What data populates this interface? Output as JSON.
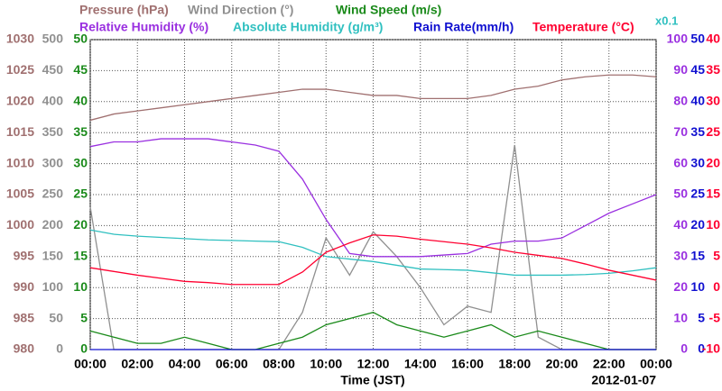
{
  "chart_data": {
    "type": "line",
    "xlabel": "Time (JST)",
    "date_label": "2012-01-07",
    "scale_note": "x0.1",
    "xlim": [
      0,
      24
    ],
    "xticks": [
      {
        "value": 0,
        "label": "00:00"
      },
      {
        "value": 2,
        "label": "02:00"
      },
      {
        "value": 4,
        "label": "04:00"
      },
      {
        "value": 6,
        "label": "06:00"
      },
      {
        "value": 8,
        "label": "08:00"
      },
      {
        "value": 10,
        "label": "10:00"
      },
      {
        "value": 12,
        "label": "12:00"
      },
      {
        "value": 14,
        "label": "14:00"
      },
      {
        "value": 16,
        "label": "16:00"
      },
      {
        "value": 18,
        "label": "18:00"
      },
      {
        "value": 20,
        "label": "20:00"
      },
      {
        "value": 22,
        "label": "22:00"
      },
      {
        "value": 24,
        "label": "00:00"
      }
    ],
    "grid": true,
    "axes": [
      {
        "color": "#a07070",
        "ylim": [
          980,
          1030
        ],
        "yticks": [
          980,
          985,
          990,
          995,
          1000,
          1005,
          1010,
          1015,
          1020,
          1025,
          1030
        ]
      },
      {
        "color": "#909090",
        "ylim": [
          0,
          500
        ],
        "yticks": [
          0,
          50,
          100,
          150,
          200,
          250,
          300,
          350,
          400,
          450,
          500
        ]
      },
      {
        "color": "#1a8a1a",
        "ylim": [
          0,
          50
        ],
        "yticks": [
          0,
          5,
          10,
          15,
          20,
          25,
          30,
          35,
          40,
          45,
          50
        ]
      },
      {
        "color": "#9a30e0",
        "ylim": [
          0,
          100
        ],
        "yticks": [
          0,
          10,
          20,
          30,
          40,
          50,
          60,
          70,
          80,
          90,
          100
        ]
      },
      {
        "color": "#1010d0",
        "ylim": [
          0,
          50
        ],
        "yticks": [
          0,
          5,
          10,
          15,
          20,
          25,
          30,
          35,
          40,
          45,
          50
        ]
      },
      {
        "color": "#ff0030",
        "ylim": [
          -10,
          40
        ],
        "yticks": [
          -10,
          -5,
          0,
          5,
          10,
          15,
          20,
          25,
          30,
          35,
          40
        ]
      }
    ],
    "x": [
      0,
      1,
      2,
      3,
      4,
      5,
      6,
      7,
      8,
      9,
      10,
      11,
      12,
      13,
      14,
      15,
      16,
      17,
      18,
      19,
      20,
      21,
      22,
      23,
      24
    ],
    "series": [
      {
        "name": "Pressure (hPa)",
        "color": "#a07070",
        "axis": 0,
        "values": [
          1017,
          1018,
          1018.5,
          1019,
          1019.5,
          1020,
          1020.5,
          1021,
          1021.5,
          1022,
          1022,
          1021.5,
          1021,
          1021,
          1020.5,
          1020.5,
          1020.5,
          1021,
          1022,
          1022.5,
          1023.5,
          1024,
          1024.3,
          1024.3,
          1024
        ]
      },
      {
        "name": "Wind Direction (°)",
        "color": "#909090",
        "axis": 1,
        "values": [
          230,
          0,
          0,
          0,
          0,
          0,
          0,
          0,
          0,
          60,
          180,
          120,
          190,
          150,
          100,
          40,
          70,
          60,
          330,
          20,
          0,
          0,
          0,
          0,
          0
        ]
      },
      {
        "name": "Wind Speed (m/s)",
        "color": "#1a8a1a",
        "axis": 2,
        "values": [
          3,
          2,
          1,
          1,
          2,
          1,
          0,
          0,
          1,
          2,
          4,
          5,
          6,
          4,
          3,
          2,
          3,
          4,
          2,
          3,
          2,
          1,
          0,
          0,
          0
        ]
      },
      {
        "name": "Relative Humidity (%)",
        "color": "#9a30e0",
        "axis": 3,
        "values": [
          65.5,
          67,
          67,
          68,
          68,
          68,
          67,
          66,
          64,
          55,
          42,
          31,
          30,
          30,
          30,
          30.5,
          31,
          34,
          35,
          35,
          36,
          40,
          44,
          47,
          50
        ]
      },
      {
        "name": "Absolute Humidity (g/m³)",
        "color": "#30c0c0",
        "axis": 4,
        "values": [
          19.3,
          18.6,
          18.3,
          18.1,
          17.9,
          17.7,
          17.6,
          17.5,
          17.4,
          16.5,
          15,
          14.6,
          14.2,
          13.6,
          13,
          12.9,
          12.8,
          12.4,
          12,
          12,
          12,
          12.1,
          12.3,
          12.7,
          13.2
        ]
      },
      {
        "name": "Rain Rate(mm/h)",
        "color": "#1010d0",
        "axis": 4,
        "values": [
          0,
          0,
          0,
          0,
          0,
          0,
          0,
          0,
          0,
          0,
          0,
          0,
          0,
          0,
          0,
          0,
          0,
          0,
          0,
          0,
          0,
          0,
          0,
          0,
          0
        ]
      },
      {
        "name": "Temperature (°C)",
        "color": "#ff0030",
        "axis": 5,
        "values": [
          3.2,
          2.6,
          2,
          1.5,
          1,
          0.8,
          0.5,
          0.5,
          0.5,
          2.5,
          5.7,
          7.2,
          8.5,
          8.3,
          7.8,
          7.4,
          7,
          6.4,
          5.7,
          5.2,
          4.7,
          3.8,
          2.8,
          2,
          1.2
        ]
      }
    ]
  }
}
